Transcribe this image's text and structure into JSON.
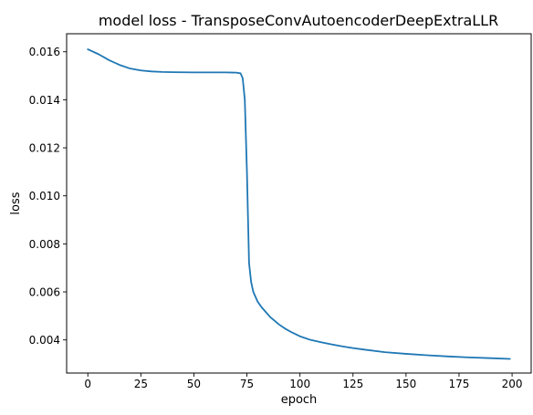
{
  "chart_data": {
    "type": "line",
    "title": "model loss - TransposeConvAutoencoderDeepExtraLLR",
    "xlabel": "epoch",
    "ylabel": "loss",
    "xlim": [
      -10,
      209
    ],
    "ylim": [
      0.00262,
      0.01675
    ],
    "xticks": [
      0,
      25,
      50,
      75,
      100,
      125,
      150,
      175,
      200
    ],
    "xtick_labels": [
      "0",
      "25",
      "50",
      "75",
      "100",
      "125",
      "150",
      "175",
      "200"
    ],
    "yticks": [
      0.004,
      0.006,
      0.008,
      0.01,
      0.012,
      0.014,
      0.016
    ],
    "ytick_labels": [
      "0.004",
      "0.006",
      "0.008",
      "0.010",
      "0.012",
      "0.014",
      "0.016"
    ],
    "grid": false,
    "series": [
      {
        "color": "#1f77b4",
        "x": [
          0,
          5,
          10,
          15,
          20,
          25,
          30,
          35,
          40,
          50,
          60,
          65,
          70,
          72,
          73,
          74,
          75,
          76,
          77,
          78,
          80,
          82,
          84,
          86,
          88,
          90,
          93,
          96,
          100,
          105,
          110,
          115,
          120,
          125,
          130,
          140,
          150,
          160,
          170,
          180,
          190,
          199
        ],
        "y": [
          0.0161,
          0.0159,
          0.01565,
          0.01545,
          0.0153,
          0.01522,
          0.01518,
          0.01516,
          0.01515,
          0.01514,
          0.01514,
          0.01514,
          0.01513,
          0.0151,
          0.0149,
          0.014,
          0.011,
          0.0072,
          0.0064,
          0.006,
          0.0056,
          0.00535,
          0.00515,
          0.00495,
          0.0048,
          0.00465,
          0.00447,
          0.00432,
          0.00415,
          0.004,
          0.0039,
          0.00381,
          0.00373,
          0.00366,
          0.0036,
          0.00349,
          0.00342,
          0.00336,
          0.00331,
          0.00327,
          0.00324,
          0.00321
        ]
      }
    ]
  }
}
